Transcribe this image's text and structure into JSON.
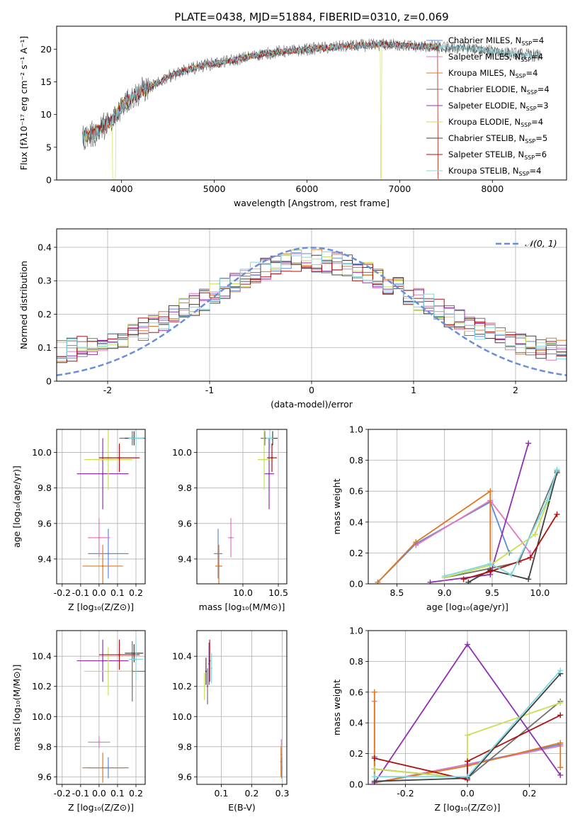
{
  "figure_title": "PLATE=0438, MJD=51884, FIBERID=0310, z=0.069",
  "colors": {
    "Chabrier MILES": "#5b8bd9",
    "Salpeter MILES": "#e078c0",
    "Kroupa MILES": "#e07820",
    "Chabrier ELODIE": "#707070",
    "Salpeter ELODIE": "#9030b0",
    "Kroupa ELODIE": "#c8e050",
    "Chabrier STELIB": "#404040",
    "Salpeter STELIB": "#b01010",
    "Kroupa STELIB": "#80d8e0",
    "normal": "#6a8fd8"
  },
  "chart_data": [
    {
      "id": "spectrum",
      "type": "line",
      "title": "PLATE=0438, MJD=51884, FIBERID=0310, z=0.069",
      "xlabel": "wavelength [Angstrom, rest frame]",
      "ylabel": "Flux [fλ10⁻¹⁷ erg cm⁻² s⁻¹ A⁻¹]",
      "xlim": [
        3300,
        8800
      ],
      "ylim": [
        0,
        23.5
      ],
      "xticks": [
        4000,
        5000,
        6000,
        7000,
        8000
      ],
      "yticks": [
        0,
        5,
        10,
        15,
        20
      ],
      "legend_position": "right",
      "continuum": {
        "x": [
          3580,
          3700,
          3800,
          3900,
          3960,
          4000,
          4100,
          4200,
          4300,
          4400,
          4500,
          4700,
          4900,
          5100,
          5300,
          5500,
          5700,
          5900,
          6100,
          6300,
          6500,
          6700,
          6900,
          7100,
          7300,
          7500,
          7700,
          7900,
          8100,
          8300,
          8500
        ],
        "y": [
          6.5,
          7.0,
          8.2,
          9.0,
          10.5,
          11.5,
          12.5,
          13.5,
          14.2,
          14.8,
          15.8,
          16.8,
          17.6,
          18.0,
          18.6,
          19.2,
          19.6,
          19.8,
          20.1,
          20.3,
          20.5,
          20.6,
          20.7,
          20.5,
          20.4,
          20.2,
          20.2,
          19.8,
          19.5,
          19.2,
          19.0
        ]
      },
      "series": [
        {
          "name": "Chabrier MILES",
          "nssp": "4"
        },
        {
          "name": "Salpeter MILES",
          "nssp": "4"
        },
        {
          "name": "Kroupa MILES",
          "nssp": "4"
        },
        {
          "name": "Chabrier ELODIE",
          "nssp": "4"
        },
        {
          "name": "Salpeter ELODIE",
          "nssp": "3"
        },
        {
          "name": "Kroupa ELODIE",
          "nssp": "4"
        },
        {
          "name": "Chabrier STELIB",
          "nssp": "5"
        },
        {
          "name": "Salpeter STELIB",
          "nssp": "6"
        },
        {
          "name": "Kroupa STELIB",
          "nssp": "4"
        }
      ]
    },
    {
      "id": "residuals",
      "type": "line",
      "xlabel": "(data-model)/error",
      "ylabel": "Normed distribution",
      "xlim": [
        -2.5,
        2.5
      ],
      "ylim": [
        0,
        0.455
      ],
      "xticks": [
        -2,
        -1,
        0,
        1,
        2
      ],
      "yticks": [
        0.0,
        0.1,
        0.2,
        0.3,
        0.4
      ],
      "grid": true,
      "legend": "𝒩(0, 1)",
      "legend_position": "upper right",
      "normal": {
        "mean": 0,
        "sigma": 1
      }
    },
    {
      "id": "age_vs_Z",
      "type": "scatter",
      "xlabel": "Z [log₁₀(Z/Z⊙)]",
      "ylabel": "age  [log₁₀(age/yr)]",
      "xlim": [
        -0.23,
        0.25
      ],
      "ylim": [
        9.26,
        10.13
      ],
      "xticks": [
        -0.2,
        -0.1,
        0.0,
        0.1,
        0.2
      ],
      "yticks": [
        9.4,
        9.6,
        9.8,
        10.0
      ],
      "grid": true,
      "points": [
        {
          "series": "Chabrier MILES",
          "x": 0.05,
          "y": 9.43,
          "xerr": 0.11,
          "yerr": 0.14
        },
        {
          "series": "Salpeter MILES",
          "x": 0.0,
          "y": 9.52,
          "xerr": 0.06,
          "yerr": 0.11
        },
        {
          "series": "Kroupa MILES",
          "x": 0.02,
          "y": 9.36,
          "xerr": 0.11,
          "yerr": 0.12
        },
        {
          "series": "Chabrier ELODIE",
          "x": 0.18,
          "y": 10.08,
          "xerr": 0.07,
          "yerr": 0.04
        },
        {
          "series": "Salpeter ELODIE",
          "x": 0.02,
          "y": 9.88,
          "xerr": 0.14,
          "yerr": 0.2
        },
        {
          "series": "Kroupa ELODIE",
          "x": 0.05,
          "y": 9.96,
          "xerr": 0.13,
          "yerr": 0.17
        },
        {
          "series": "Chabrier STELIB",
          "x": 0.19,
          "y": 10.08,
          "xerr": 0.05,
          "yerr": 0.04
        },
        {
          "series": "Salpeter STELIB",
          "x": 0.11,
          "y": 9.97,
          "xerr": 0.11,
          "yerr": 0.08
        },
        {
          "series": "Kroupa STELIB",
          "x": 0.2,
          "y": 10.08,
          "xerr": 0.04,
          "yerr": 0.06
        }
      ]
    },
    {
      "id": "age_vs_mass",
      "type": "scatter",
      "xlabel": "mass [log₁₀(M/M⊙)]",
      "ylabel": "",
      "xlim": [
        9.35,
        10.62
      ],
      "ylim": [
        9.26,
        10.13
      ],
      "xticks": [
        10.0,
        10.5
      ],
      "yticks": [
        9.4,
        9.6,
        9.8,
        10.0
      ],
      "grid": true,
      "points": [
        {
          "series": "Chabrier MILES",
          "x": 9.65,
          "y": 9.43,
          "xerr": 0.06,
          "yerr": 0.14
        },
        {
          "series": "Salpeter MILES",
          "x": 9.83,
          "y": 9.52,
          "xerr": 0.04,
          "yerr": 0.11
        },
        {
          "series": "Kroupa MILES",
          "x": 9.66,
          "y": 9.36,
          "xerr": 0.05,
          "yerr": 0.12
        },
        {
          "series": "Chabrier ELODIE",
          "x": 10.31,
          "y": 10.08,
          "xerr": 0.06,
          "yerr": 0.04
        },
        {
          "series": "Salpeter ELODIE",
          "x": 10.37,
          "y": 9.88,
          "xerr": 0.07,
          "yerr": 0.2
        },
        {
          "series": "Kroupa ELODIE",
          "x": 10.3,
          "y": 9.96,
          "xerr": 0.09,
          "yerr": 0.17
        },
        {
          "series": "Chabrier STELIB",
          "x": 10.42,
          "y": 10.08,
          "xerr": 0.07,
          "yerr": 0.04
        },
        {
          "series": "Salpeter STELIB",
          "x": 10.41,
          "y": 9.97,
          "xerr": 0.07,
          "yerr": 0.08
        },
        {
          "series": "Kroupa STELIB",
          "x": 10.38,
          "y": 10.08,
          "xerr": 0.05,
          "yerr": 0.06
        }
      ]
    },
    {
      "id": "weights_vs_age",
      "type": "line",
      "xlabel": "age  [log₁₀(age/yr)]",
      "ylabel": "mass weight",
      "xlim": [
        8.2,
        10.28
      ],
      "ylim": [
        0,
        1
      ],
      "xticks": [
        8.5,
        9.0,
        9.5,
        10.0
      ],
      "yticks": [
        0.0,
        0.2,
        0.4,
        0.6,
        0.8,
        1.0
      ],
      "grid": true,
      "series": [
        {
          "name": "Chabrier MILES",
          "x": [
            8.3,
            8.7,
            9.48,
            9.68
          ],
          "y": [
            0.01,
            0.26,
            0.53,
            0.2
          ]
        },
        {
          "name": "Salpeter MILES",
          "x": [
            8.7,
            9.48,
            9.9
          ],
          "y": [
            0.25,
            0.54,
            0.2
          ]
        },
        {
          "name": "Kroupa MILES",
          "x": [
            8.3,
            8.7,
            9.48,
            9.48
          ],
          "y": [
            0.01,
            0.27,
            0.6,
            0.12
          ]
        },
        {
          "name": "Chabrier ELODIE",
          "x": [
            9.0,
            9.48,
            9.78,
            10.18
          ],
          "y": [
            0.04,
            0.1,
            0.14,
            0.73
          ]
        },
        {
          "name": "Salpeter ELODIE",
          "x": [
            8.85,
            9.48,
            9.88
          ],
          "y": [
            0.01,
            0.06,
            0.91
          ]
        },
        {
          "name": "Kroupa ELODIE",
          "x": [
            9.0,
            9.48,
            9.95,
            10.08
          ],
          "y": [
            0.04,
            0.12,
            0.32,
            0.53
          ]
        },
        {
          "name": "Chabrier STELIB",
          "x": [
            9.25,
            9.48,
            9.88,
            10.18
          ],
          "y": [
            0.01,
            0.09,
            0.03,
            0.72
          ]
        },
        {
          "name": "Salpeter STELIB",
          "x": [
            9.2,
            9.48,
            9.9,
            10.18
          ],
          "y": [
            0.03,
            0.08,
            0.17,
            0.45
          ]
        },
        {
          "name": "Kroupa STELIB",
          "x": [
            9.0,
            9.48,
            9.7,
            10.08,
            10.18
          ],
          "y": [
            0.05,
            0.13,
            0.06,
            0.54,
            0.74
          ]
        }
      ]
    },
    {
      "id": "mass_vs_Z",
      "type": "scatter",
      "xlabel": "Z [log₁₀(Z/Z⊙)]",
      "ylabel": "mass [log₁₀(M/M⊙)]",
      "xlim": [
        -0.23,
        0.25
      ],
      "ylim": [
        9.55,
        10.57
      ],
      "xticks": [
        -0.2,
        -0.1,
        0.0,
        0.1,
        0.2
      ],
      "yticks": [
        9.6,
        9.8,
        10.0,
        10.2,
        10.4
      ],
      "grid": true,
      "points": [
        {
          "series": "Chabrier MILES",
          "x": 0.05,
          "y": 9.66,
          "xerr": 0.11,
          "yerr": 0.07
        },
        {
          "series": "Salpeter MILES",
          "x": 0.0,
          "y": 9.83,
          "xerr": 0.06,
          "yerr": 0.04
        },
        {
          "series": "Kroupa MILES",
          "x": 0.02,
          "y": 9.66,
          "xerr": 0.11,
          "yerr": 0.1
        },
        {
          "series": "Chabrier ELODIE",
          "x": 0.18,
          "y": 10.3,
          "xerr": 0.07,
          "yerr": 0.2
        },
        {
          "series": "Salpeter ELODIE",
          "x": 0.02,
          "y": 10.37,
          "xerr": 0.14,
          "yerr": 0.14
        },
        {
          "series": "Kroupa ELODIE",
          "x": 0.05,
          "y": 10.3,
          "xerr": 0.13,
          "yerr": 0.16
        },
        {
          "series": "Chabrier STELIB",
          "x": 0.19,
          "y": 10.42,
          "xerr": 0.05,
          "yerr": 0.06
        },
        {
          "series": "Salpeter STELIB",
          "x": 0.11,
          "y": 10.41,
          "xerr": 0.11,
          "yerr": 0.1
        },
        {
          "series": "Kroupa STELIB",
          "x": 0.2,
          "y": 10.38,
          "xerr": 0.04,
          "yerr": 0.14
        }
      ]
    },
    {
      "id": "mass_vs_ebv",
      "type": "scatter",
      "xlabel": "E(B-V)",
      "ylabel": "",
      "xlim": [
        0.02,
        0.315
      ],
      "ylim": [
        9.55,
        10.57
      ],
      "xticks": [
        0.1,
        0.2,
        0.3
      ],
      "yticks": [
        9.6,
        9.8,
        10.0,
        10.2,
        10.4
      ],
      "grid": true,
      "points": [
        {
          "series": "Chabrier MILES",
          "x": 0.298,
          "y": 9.66,
          "xerr": 0,
          "yerr": 0.07
        },
        {
          "series": "Salpeter MILES",
          "x": 0.297,
          "y": 9.75,
          "xerr": 0,
          "yerr": 0.1
        },
        {
          "series": "Kroupa MILES",
          "x": 0.296,
          "y": 9.7,
          "xerr": 0,
          "yerr": 0.1
        },
        {
          "series": "Chabrier ELODIE",
          "x": 0.055,
          "y": 10.2,
          "xerr": 0,
          "yerr": 0.12
        },
        {
          "series": "Salpeter ELODIE",
          "x": 0.06,
          "y": 10.35,
          "xerr": 0,
          "yerr": 0.14
        },
        {
          "series": "Kroupa ELODIE",
          "x": 0.045,
          "y": 10.2,
          "xerr": 0,
          "yerr": 0.09
        },
        {
          "series": "Chabrier STELIB",
          "x": 0.05,
          "y": 10.3,
          "xerr": 0,
          "yerr": 0.09
        },
        {
          "series": "Salpeter STELIB",
          "x": 0.062,
          "y": 10.37,
          "xerr": 0,
          "yerr": 0.14
        },
        {
          "series": "Kroupa STELIB",
          "x": 0.068,
          "y": 10.32,
          "xerr": 0,
          "yerr": 0.1
        }
      ]
    },
    {
      "id": "weights_vs_Z",
      "type": "line",
      "xlabel": "Z [log₁₀(Z/Z⊙)]",
      "ylabel": "mass weight",
      "xlim": [
        -0.32,
        0.32
      ],
      "ylim": [
        0,
        1
      ],
      "xticks": [
        -0.2,
        0.0,
        0.2
      ],
      "yticks": [
        0.0,
        0.2,
        0.4,
        0.6,
        0.8,
        1.0
      ],
      "grid": true,
      "series": [
        {
          "name": "Chabrier MILES",
          "x": [
            -0.3,
            -0.3,
            0.0,
            0.3
          ],
          "y": [
            0.18,
            0.01,
            0.13,
            0.26
          ]
        },
        {
          "name": "Salpeter MILES",
          "x": [
            -0.3,
            -0.3,
            0.3
          ],
          "y": [
            0.54,
            0.01,
            0.25
          ]
        },
        {
          "name": "Kroupa MILES",
          "x": [
            -0.3,
            -0.3,
            0.0,
            0.3,
            0.3
          ],
          "y": [
            0.6,
            0.01,
            0.12,
            0.27,
            0.11
          ]
        },
        {
          "name": "Chabrier ELODIE",
          "x": [
            -0.3,
            0.0,
            0.3
          ],
          "y": [
            0.1,
            0.04,
            0.54
          ]
        },
        {
          "name": "Salpeter ELODIE",
          "x": [
            -0.3,
            0.0,
            0.3
          ],
          "y": [
            0.01,
            0.91,
            0.06
          ]
        },
        {
          "name": "Kroupa ELODIE",
          "x": [
            -0.3,
            0.0,
            0.0,
            0.3
          ],
          "y": [
            0.1,
            0.04,
            0.32,
            0.53
          ]
        },
        {
          "name": "Chabrier STELIB",
          "x": [
            -0.3,
            0.0,
            0.3
          ],
          "y": [
            0.02,
            0.04,
            0.72
          ]
        },
        {
          "name": "Salpeter STELIB",
          "x": [
            -0.3,
            0.0,
            0.0,
            0.3
          ],
          "y": [
            0.17,
            0.03,
            0.15,
            0.45
          ]
        },
        {
          "name": "Kroupa STELIB",
          "x": [
            -0.3,
            0.0,
            0.3
          ],
          "y": [
            0.05,
            0.05,
            0.74
          ]
        }
      ]
    }
  ]
}
